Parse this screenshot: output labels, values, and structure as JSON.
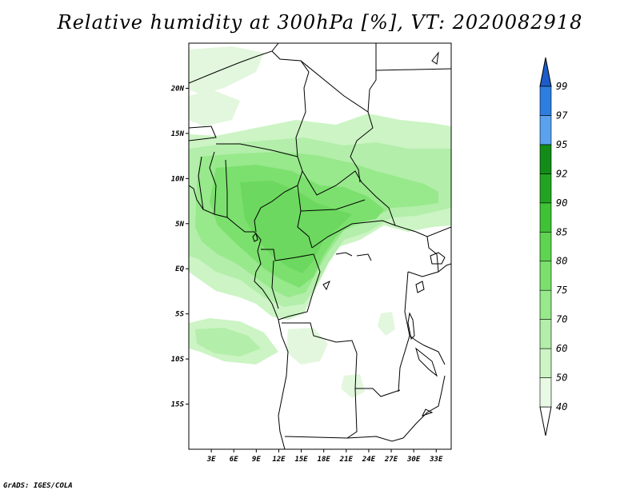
{
  "title": "Relative humidity at 300hPa [%], VT: 2020082918",
  "credit": "GrADS: IGES/COLA",
  "map": {
    "projection": "lat-lon",
    "lon_range": [
      0,
      35
    ],
    "lat_range": [
      -20,
      25
    ],
    "lat_ticks": [
      {
        "value": 20,
        "label": "20N"
      },
      {
        "value": 15,
        "label": "15N"
      },
      {
        "value": 10,
        "label": "10N"
      },
      {
        "value": 5,
        "label": "5N"
      },
      {
        "value": 0,
        "label": "EQ"
      },
      {
        "value": -5,
        "label": "5S"
      },
      {
        "value": -10,
        "label": "10S"
      },
      {
        "value": -15,
        "label": "15S"
      }
    ],
    "lon_ticks": [
      {
        "value": 3,
        "label": "3E"
      },
      {
        "value": 6,
        "label": "6E"
      },
      {
        "value": 9,
        "label": "9E"
      },
      {
        "value": 12,
        "label": "12E"
      },
      {
        "value": 15,
        "label": "15E"
      },
      {
        "value": 18,
        "label": "18E"
      },
      {
        "value": 21,
        "label": "21E"
      },
      {
        "value": 24,
        "label": "24E"
      },
      {
        "value": 27,
        "label": "27E"
      },
      {
        "value": 30,
        "label": "30E"
      },
      {
        "value": 33,
        "label": "33E"
      }
    ]
  },
  "colorbar": {
    "levels": [
      "40",
      "50",
      "60",
      "70",
      "75",
      "80",
      "85",
      "90",
      "92",
      "95",
      "97",
      "99"
    ],
    "bin_colors": [
      "#e8f9e4",
      "#ccf4c4",
      "#b3eeaa",
      "#98e88c",
      "#7ce06e",
      "#5ed450",
      "#3fc236",
      "#22a422",
      "#128c16",
      "#5aa2ee",
      "#2d7ee0",
      "#1b5cc8"
    ],
    "lower_color": "#ffffff",
    "upper_color": "#1b5cc8"
  },
  "colors": {
    "frame": "#000000",
    "borders": "#000000"
  }
}
